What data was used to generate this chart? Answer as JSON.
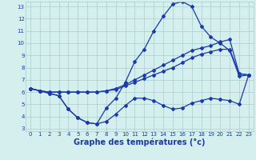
{
  "title": "Graphe des températures (°c)",
  "x_hours": [
    0,
    1,
    2,
    3,
    4,
    5,
    6,
    7,
    8,
    9,
    10,
    11,
    12,
    13,
    14,
    15,
    16,
    17,
    18,
    19,
    20,
    21,
    22,
    23
  ],
  "line1": [
    6.3,
    6.1,
    5.9,
    5.7,
    4.6,
    3.9,
    3.5,
    3.4,
    4.7,
    5.5,
    6.8,
    8.5,
    9.5,
    11.0,
    12.2,
    13.2,
    13.4,
    13.0,
    11.4,
    10.5,
    10.0,
    9.4,
    7.3,
    7.4
  ],
  "line2": [
    6.3,
    6.1,
    6.0,
    6.0,
    6.0,
    6.0,
    6.0,
    6.0,
    6.1,
    6.2,
    6.5,
    6.8,
    7.1,
    7.4,
    7.7,
    8.0,
    8.4,
    8.8,
    9.1,
    9.3,
    9.5,
    9.5,
    7.5,
    7.4
  ],
  "line3": [
    6.3,
    6.1,
    6.0,
    6.0,
    6.0,
    6.0,
    6.0,
    6.0,
    6.1,
    6.3,
    6.6,
    7.0,
    7.4,
    7.8,
    8.2,
    8.6,
    9.0,
    9.4,
    9.6,
    9.8,
    10.1,
    10.3,
    7.5,
    7.4
  ],
  "line4": [
    6.3,
    6.1,
    5.9,
    5.7,
    4.6,
    3.9,
    3.5,
    3.4,
    3.6,
    4.2,
    4.9,
    5.5,
    5.5,
    5.3,
    4.9,
    4.6,
    4.7,
    5.1,
    5.3,
    5.5,
    5.4,
    5.3,
    5.0,
    7.4
  ],
  "line_color": "#1a3aaa",
  "bg_color": "#d5eeee",
  "grid_color": "#aacccc",
  "ylim": [
    3,
    13
  ],
  "xlim": [
    0,
    23
  ],
  "yticks": [
    3,
    4,
    5,
    6,
    7,
    8,
    9,
    10,
    11,
    12,
    13
  ],
  "xticks": [
    0,
    1,
    2,
    3,
    4,
    5,
    6,
    7,
    8,
    9,
    10,
    11,
    12,
    13,
    14,
    15,
    16,
    17,
    18,
    19,
    20,
    21,
    22,
    23
  ],
  "tick_fontsize": 5.0,
  "xlabel_fontsize": 7.0
}
